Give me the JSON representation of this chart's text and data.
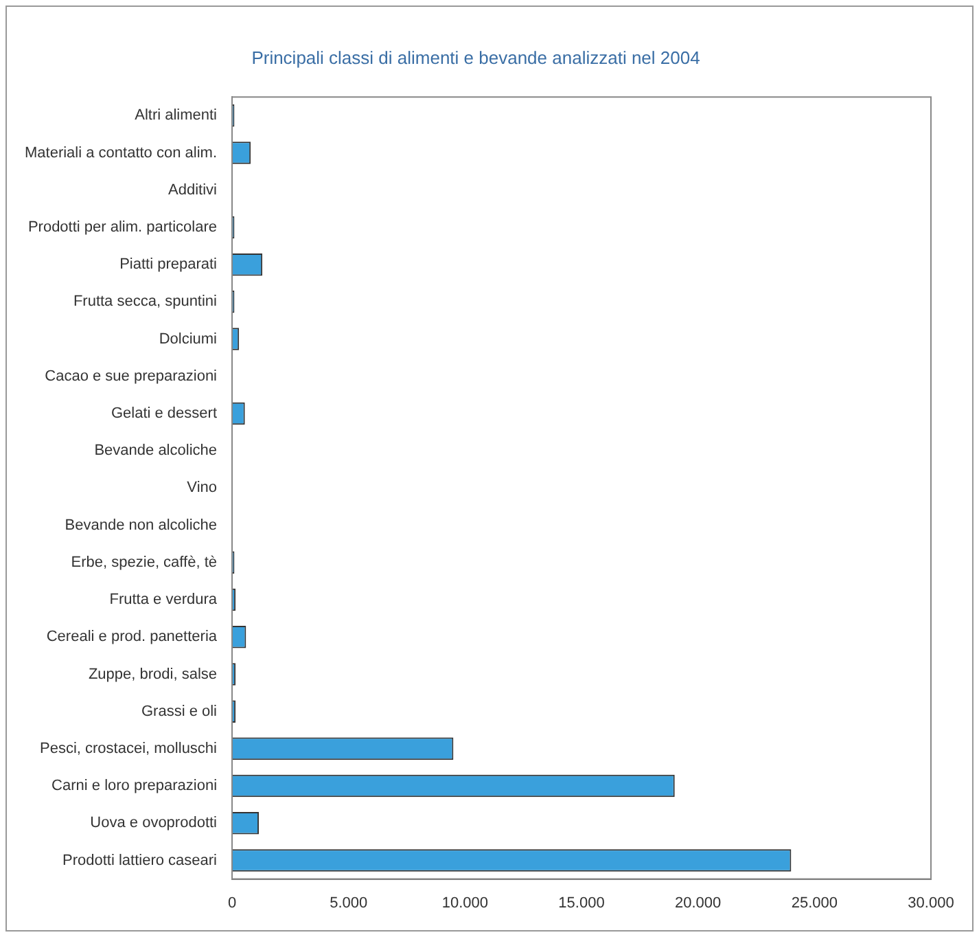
{
  "chart_data": {
    "type": "bar",
    "orientation": "horizontal",
    "title": "Principali classi di alimenti e bevande analizzati nel 2004",
    "categories": [
      "Altri alimenti",
      "Materiali a contatto con alim.",
      "Additivi",
      "Prodotti per alim. particolare",
      "Piatti preparati",
      "Frutta secca, spuntini",
      "Dolciumi",
      "Cacao e sue preparazioni",
      "Gelati e dessert",
      "Bevande alcoliche",
      "Vino",
      "Bevande non alcoliche",
      "Erbe, spezie, caffè, tè",
      "Frutta e verdura",
      "Cereali e prod. panetteria",
      "Zuppe, brodi, salse",
      "Grassi e oli",
      "Pesci, crostacei, molluschi",
      "Carni e loro preparazioni",
      "Uova e ovoprodotti",
      "Prodotti lattiero caseari"
    ],
    "values": [
      100,
      800,
      0,
      100,
      1300,
      100,
      300,
      0,
      550,
      0,
      0,
      0,
      100,
      150,
      600,
      150,
      150,
      9500,
      19000,
      1150,
      24000
    ],
    "color": "#3aa0dc",
    "xlim": [
      0,
      30000
    ],
    "xticks": [
      {
        "value": 0,
        "label": "0"
      },
      {
        "value": 5000,
        "label": "5.000"
      },
      {
        "value": 10000,
        "label": "10.000"
      },
      {
        "value": 15000,
        "label": "15.000"
      },
      {
        "value": 20000,
        "label": "20.000"
      },
      {
        "value": 25000,
        "label": "25.000"
      },
      {
        "value": 30000,
        "label": "30.000"
      }
    ],
    "grid": false,
    "legend": false
  }
}
